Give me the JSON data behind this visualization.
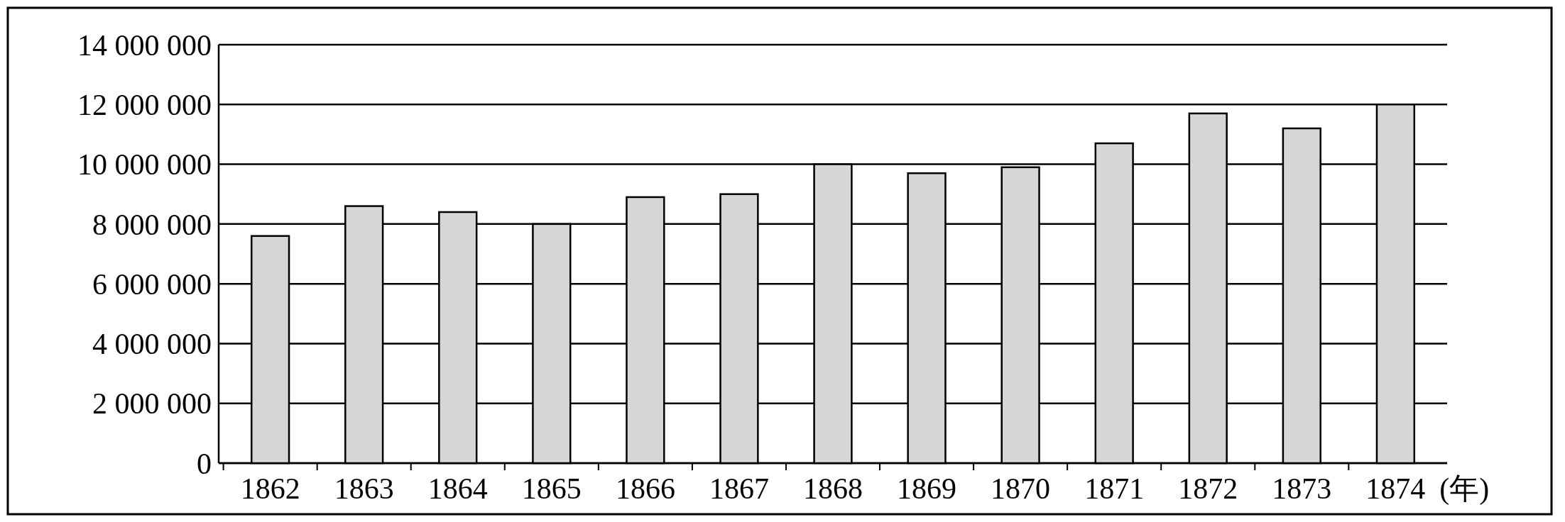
{
  "chart_data": {
    "type": "bar",
    "xlabel": "(年)",
    "categories": [
      "1862",
      "1863",
      "1864",
      "1865",
      "1866",
      "1867",
      "1868",
      "1869",
      "1870",
      "1871",
      "1872",
      "1873",
      "1874"
    ],
    "values": [
      7600000,
      8600000,
      8400000,
      8000000,
      8900000,
      9000000,
      10000000,
      9700000,
      9900000,
      10700000,
      11700000,
      11200000,
      12000000
    ],
    "color": "#d6d6d6",
    "ylim": [
      0,
      14000000
    ],
    "yticks": [
      {
        "value": 0,
        "label": "0"
      },
      {
        "value": 2000000,
        "label": "2 000 000"
      },
      {
        "value": 4000000,
        "label": "4 000 000"
      },
      {
        "value": 6000000,
        "label": "6 000 000"
      },
      {
        "value": 8000000,
        "label": "8 000 000"
      },
      {
        "value": 10000000,
        "label": "10 000 000"
      },
      {
        "value": 12000000,
        "label": "12 000 000"
      },
      {
        "value": 14000000,
        "label": "14 000 000"
      }
    ],
    "grid": "y"
  }
}
